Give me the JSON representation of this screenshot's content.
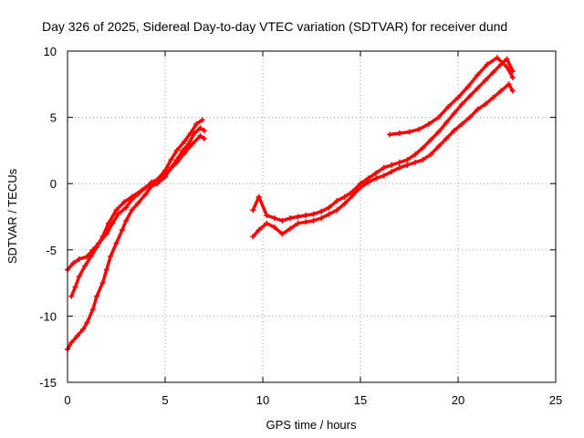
{
  "chart_data": {
    "type": "scatter",
    "title": "Day 326 of 2025, Sidereal Day-to-day VTEC variation (SDTVAR) for receiver dund",
    "xlabel": "GPS time / hours",
    "ylabel": "SDTVAR / TECUs",
    "xlim": [
      0,
      25
    ],
    "ylim": [
      -15,
      10
    ],
    "xticks": [
      0,
      5,
      10,
      15,
      20,
      25
    ],
    "yticks": [
      -15,
      -10,
      -5,
      0,
      5,
      10
    ],
    "grid": true,
    "marker": "+",
    "color": "#ff0000",
    "series": [
      {
        "values": [
          [
            0.0,
            -12.5
          ],
          [
            0.2,
            -12.0
          ],
          [
            0.5,
            -11.5
          ],
          [
            0.8,
            -11.0
          ],
          [
            1.0,
            -10.5
          ],
          [
            1.3,
            -9.5
          ],
          [
            1.5,
            -8.5
          ],
          [
            1.8,
            -7.5
          ],
          [
            2.0,
            -6.5
          ],
          [
            2.2,
            -5.5
          ],
          [
            2.5,
            -4.5
          ],
          [
            2.8,
            -3.5
          ],
          [
            3.0,
            -2.8
          ],
          [
            3.3,
            -2.0
          ],
          [
            3.6,
            -1.5
          ],
          [
            4.0,
            -0.8
          ],
          [
            4.3,
            -0.2
          ],
          [
            4.6,
            0.0
          ],
          [
            5.0,
            0.5
          ],
          [
            5.3,
            1.2
          ],
          [
            5.6,
            1.8
          ],
          [
            5.9,
            2.5
          ],
          [
            6.2,
            3.0
          ],
          [
            6.5,
            3.8
          ],
          [
            6.8,
            4.2
          ],
          [
            7.0,
            4.0
          ]
        ]
      },
      {
        "values": [
          [
            0.0,
            -6.5
          ],
          [
            0.3,
            -6.0
          ],
          [
            0.6,
            -5.7
          ],
          [
            1.0,
            -5.5
          ],
          [
            1.3,
            -5.0
          ],
          [
            1.6,
            -4.5
          ],
          [
            2.0,
            -3.8
          ],
          [
            2.3,
            -3.0
          ],
          [
            2.6,
            -2.3
          ],
          [
            3.0,
            -1.8
          ],
          [
            3.3,
            -1.2
          ],
          [
            3.6,
            -0.8
          ],
          [
            4.0,
            -0.3
          ],
          [
            4.3,
            0.1
          ],
          [
            4.6,
            0.3
          ],
          [
            5.0,
            1.0
          ],
          [
            5.3,
            1.8
          ],
          [
            5.6,
            2.5
          ],
          [
            6.0,
            3.2
          ],
          [
            6.3,
            3.8
          ],
          [
            6.6,
            4.5
          ],
          [
            6.9,
            4.8
          ]
        ]
      },
      {
        "values": [
          [
            0.2,
            -8.5
          ],
          [
            0.4,
            -7.8
          ],
          [
            0.6,
            -7.0
          ],
          [
            0.9,
            -6.2
          ],
          [
            1.2,
            -5.5
          ],
          [
            1.5,
            -4.8
          ],
          [
            1.8,
            -4.0
          ],
          [
            2.1,
            -3.0
          ],
          [
            2.5,
            -2.0
          ],
          [
            2.9,
            -1.4
          ],
          [
            3.3,
            -1.0
          ],
          [
            3.8,
            -0.5
          ],
          [
            4.2,
            -0.1
          ],
          [
            4.7,
            0.4
          ],
          [
            5.2,
            1.0
          ],
          [
            5.6,
            1.6
          ],
          [
            6.0,
            2.3
          ],
          [
            6.4,
            3.0
          ],
          [
            6.8,
            3.6
          ],
          [
            7.0,
            3.4
          ]
        ]
      },
      {
        "values": [
          [
            9.5,
            -4.0
          ],
          [
            9.8,
            -3.5
          ],
          [
            10.2,
            -3.0
          ],
          [
            10.6,
            -3.3
          ],
          [
            11.0,
            -3.8
          ],
          [
            11.4,
            -3.4
          ],
          [
            11.8,
            -3.0
          ],
          [
            12.2,
            -2.9
          ],
          [
            12.6,
            -2.8
          ],
          [
            13.0,
            -2.6
          ],
          [
            13.4,
            -2.3
          ],
          [
            13.8,
            -2.0
          ],
          [
            14.2,
            -1.5
          ],
          [
            14.6,
            -0.9
          ],
          [
            15.0,
            -0.3
          ],
          [
            15.4,
            0.1
          ],
          [
            15.8,
            0.4
          ],
          [
            16.2,
            0.6
          ],
          [
            16.6,
            0.9
          ],
          [
            17.0,
            1.2
          ],
          [
            17.4,
            1.4
          ],
          [
            17.8,
            1.6
          ],
          [
            18.2,
            1.8
          ],
          [
            18.6,
            2.2
          ],
          [
            19.0,
            2.8
          ],
          [
            19.4,
            3.4
          ],
          [
            19.8,
            4.0
          ],
          [
            20.2,
            4.5
          ],
          [
            20.6,
            5.0
          ],
          [
            21.0,
            5.6
          ],
          [
            21.4,
            6.0
          ],
          [
            21.8,
            6.5
          ],
          [
            22.2,
            7.0
          ],
          [
            22.6,
            7.5
          ],
          [
            22.8,
            7.0
          ]
        ]
      },
      {
        "values": [
          [
            9.5,
            -2.0
          ],
          [
            9.8,
            -1.0
          ],
          [
            10.2,
            -2.4
          ],
          [
            10.6,
            -2.6
          ],
          [
            11.0,
            -2.8
          ],
          [
            11.4,
            -2.6
          ],
          [
            11.8,
            -2.5
          ],
          [
            12.2,
            -2.4
          ],
          [
            12.6,
            -2.3
          ],
          [
            13.0,
            -2.1
          ],
          [
            13.4,
            -1.8
          ],
          [
            13.8,
            -1.3
          ],
          [
            14.2,
            -1.0
          ],
          [
            14.6,
            -0.6
          ],
          [
            15.0,
            0.0
          ],
          [
            15.4,
            0.4
          ],
          [
            15.8,
            0.8
          ],
          [
            16.2,
            1.2
          ],
          [
            16.6,
            1.4
          ],
          [
            17.0,
            1.6
          ],
          [
            17.4,
            1.8
          ],
          [
            17.8,
            2.2
          ],
          [
            18.2,
            2.7
          ],
          [
            18.6,
            3.3
          ],
          [
            19.0,
            3.9
          ],
          [
            19.4,
            4.6
          ],
          [
            19.8,
            5.3
          ],
          [
            20.2,
            6.0
          ],
          [
            20.6,
            6.6
          ],
          [
            21.0,
            7.2
          ],
          [
            21.4,
            7.8
          ],
          [
            21.8,
            8.4
          ],
          [
            22.2,
            9.0
          ],
          [
            22.5,
            9.4
          ],
          [
            22.8,
            8.5
          ]
        ]
      },
      {
        "values": [
          [
            16.5,
            3.7
          ],
          [
            17.0,
            3.8
          ],
          [
            17.5,
            3.9
          ],
          [
            18.0,
            4.1
          ],
          [
            18.5,
            4.5
          ],
          [
            19.0,
            5.0
          ],
          [
            19.5,
            5.8
          ],
          [
            20.0,
            6.5
          ],
          [
            20.5,
            7.3
          ],
          [
            21.0,
            8.2
          ],
          [
            21.5,
            9.0
          ],
          [
            22.0,
            9.5
          ],
          [
            22.5,
            8.8
          ],
          [
            22.8,
            8.0
          ]
        ]
      }
    ]
  }
}
